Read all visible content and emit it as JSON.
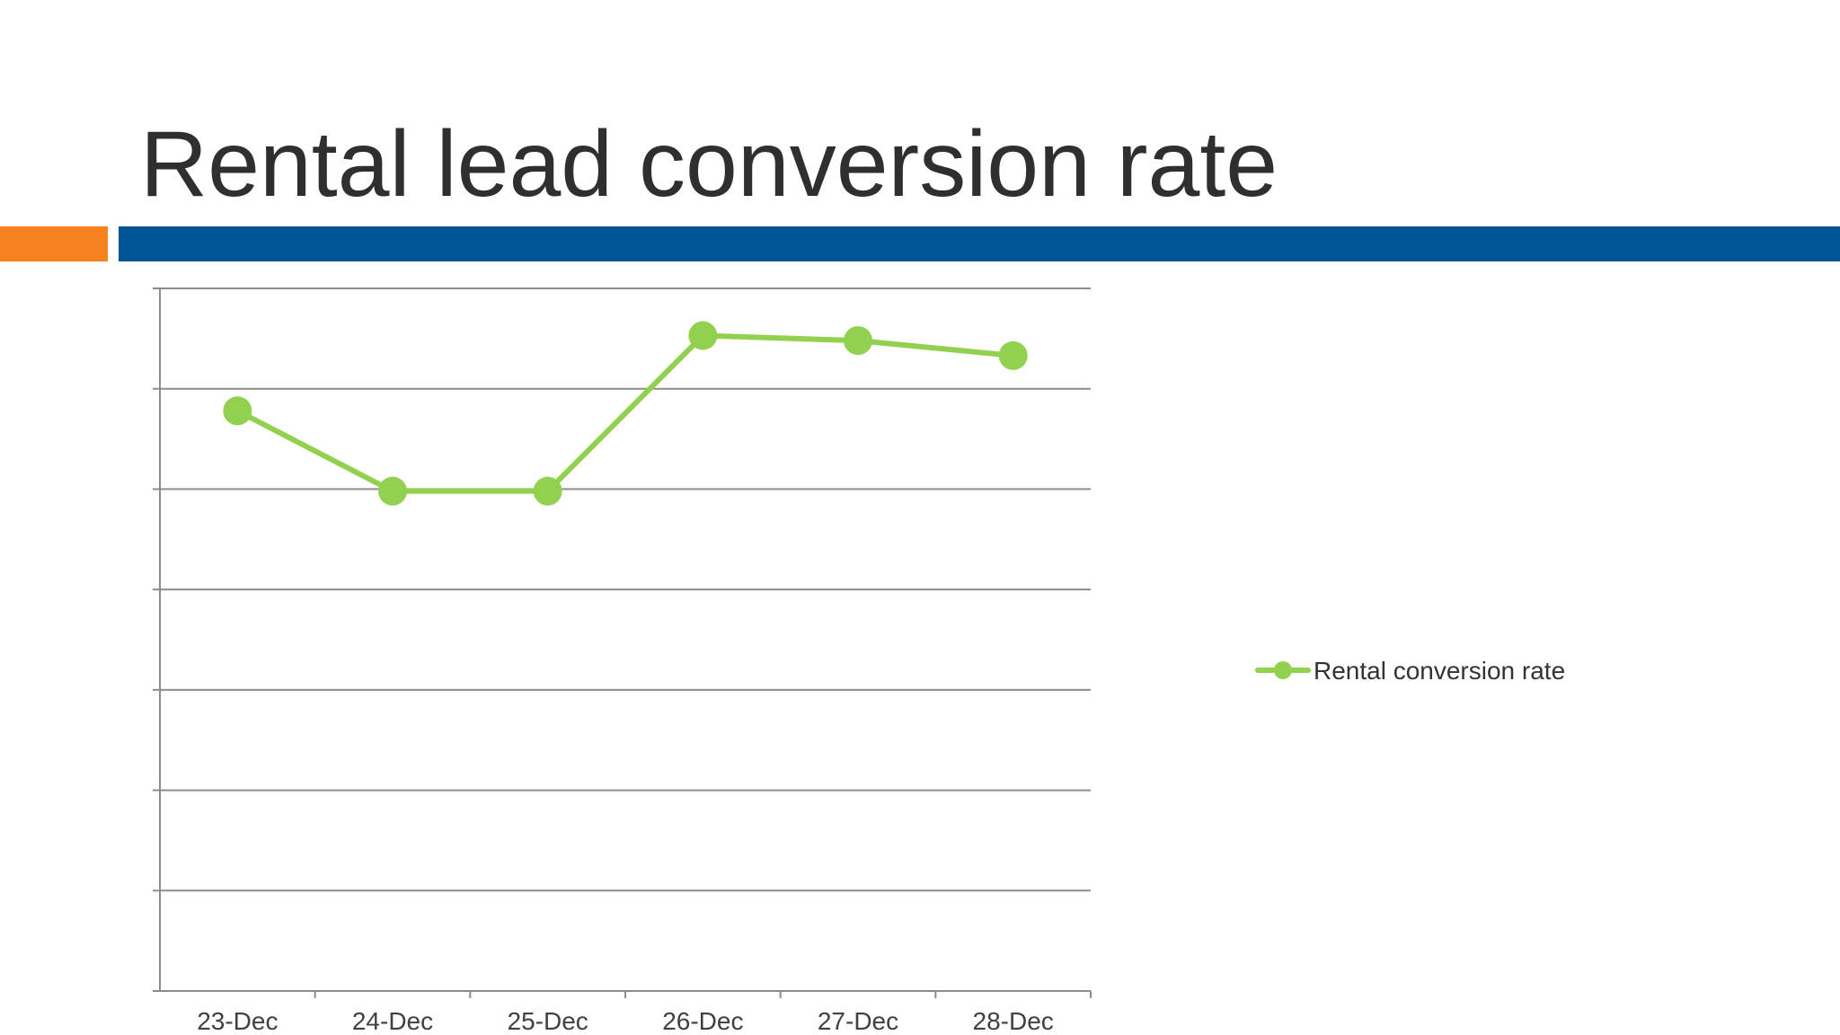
{
  "slide": {
    "title": "Rental lead conversion rate",
    "colors": {
      "accent": "#F5821F",
      "brand": "#005596",
      "title": "#2F2F2F"
    }
  },
  "chart_data": {
    "type": "line",
    "categories": [
      "23-Dec",
      "24-Dec",
      "25-Dec",
      "26-Dec",
      "27-Dec",
      "28-Dec"
    ],
    "series": [
      {
        "name": "Rental conversion rate",
        "color": "#92D050",
        "values": [
          5.78,
          4.98,
          4.98,
          6.53,
          6.48,
          6.33
        ]
      }
    ],
    "ylim": [
      0,
      7
    ],
    "y_gridlines": 7,
    "y_tick_labels_shown": false,
    "grid": true,
    "legend": "right"
  }
}
